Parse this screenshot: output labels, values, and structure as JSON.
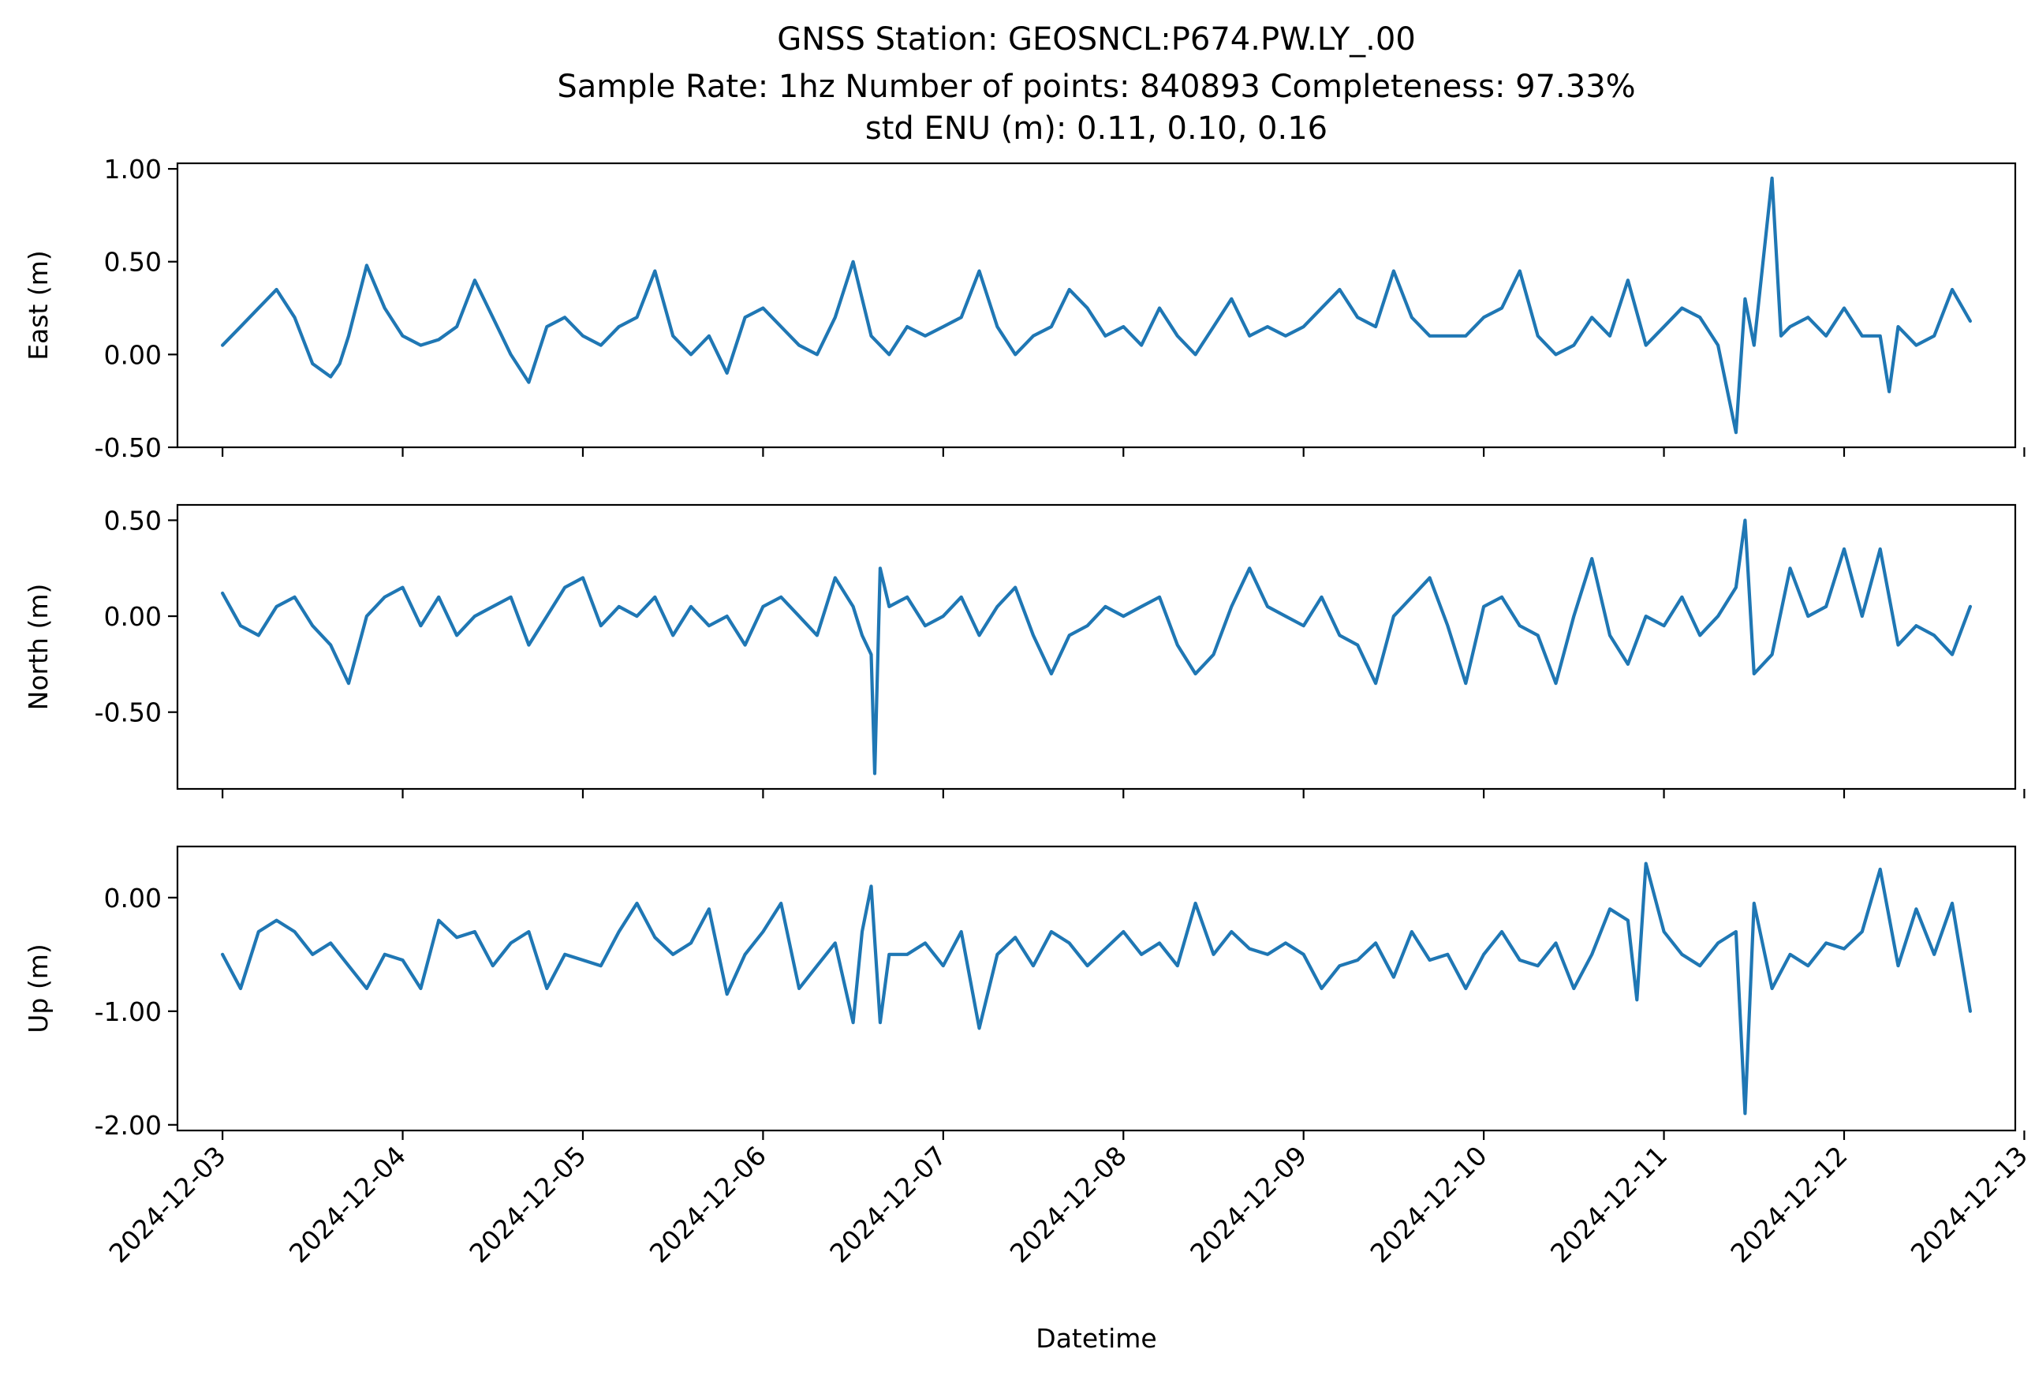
{
  "figure": {
    "title_lines": [
      "GNSS Station: GEOSNCL:P674.PW.LY_.00",
      "Sample Rate: 1hz   Number of points: 840893    Completeness:  97.33%",
      "std ENU (m):  0.11, 0.10, 0.16"
    ],
    "xlabel": "Datetime",
    "line_color": "#1f77b4"
  },
  "chart_data": [
    {
      "type": "line",
      "ylabel": "East (m)",
      "ylim": [
        -0.5,
        1.03
      ],
      "yticks": [
        -0.5,
        0.0,
        0.5,
        1.0
      ],
      "ytick_labels": [
        "-0.50",
        "0.00",
        "0.50",
        "1.00"
      ],
      "xlim": [
        -0.25,
        9.95
      ],
      "xtick_labels": [
        "2024-12-03",
        "2024-12-04",
        "2024-12-05",
        "2024-12-06",
        "2024-12-07",
        "2024-12-08",
        "2024-12-09",
        "2024-12-10",
        "2024-12-11",
        "2024-12-12",
        "2024-12-13"
      ],
      "x_units": "days since 2024-12-03",
      "series": [
        {
          "x": [
            0.0,
            0.1,
            0.2,
            0.3,
            0.4,
            0.5,
            0.6,
            0.65,
            0.7,
            0.8,
            0.9,
            1.0,
            1.1,
            1.2,
            1.3,
            1.4,
            1.5,
            1.6,
            1.7,
            1.8,
            1.9,
            2.0,
            2.1,
            2.2,
            2.3,
            2.4,
            2.5,
            2.6,
            2.7,
            2.8,
            2.9,
            3.0,
            3.1,
            3.2,
            3.3,
            3.4,
            3.5,
            3.6,
            3.7,
            3.8,
            3.9,
            4.0,
            4.1,
            4.2,
            4.3,
            4.4,
            4.5,
            4.6,
            4.7,
            4.8,
            4.9,
            5.0,
            5.1,
            5.2,
            5.3,
            5.4,
            5.5,
            5.6,
            5.7,
            5.8,
            5.9,
            6.0,
            6.1,
            6.2,
            6.3,
            6.4,
            6.5,
            6.6,
            6.7,
            6.8,
            6.9,
            7.0,
            7.1,
            7.2,
            7.3,
            7.4,
            7.5,
            7.6,
            7.7,
            7.8,
            7.9,
            8.0,
            8.1,
            8.2,
            8.3,
            8.4,
            8.45,
            8.5,
            8.6,
            8.65,
            8.7,
            8.8,
            8.9,
            9.0,
            9.1,
            9.2,
            9.25,
            9.3,
            9.4,
            9.5,
            9.6,
            9.7
          ],
          "y": [
            0.05,
            0.15,
            0.25,
            0.35,
            0.2,
            -0.05,
            -0.12,
            -0.05,
            0.1,
            0.48,
            0.25,
            0.1,
            0.05,
            0.08,
            0.15,
            0.4,
            0.2,
            0.0,
            -0.15,
            0.15,
            0.2,
            0.1,
            0.05,
            0.15,
            0.2,
            0.45,
            0.1,
            0.0,
            0.1,
            -0.1,
            0.2,
            0.25,
            0.15,
            0.05,
            0.0,
            0.2,
            0.5,
            0.1,
            0.0,
            0.15,
            0.1,
            0.15,
            0.2,
            0.45,
            0.15,
            0.0,
            0.1,
            0.15,
            0.35,
            0.25,
            0.1,
            0.15,
            0.05,
            0.25,
            0.1,
            0.0,
            0.15,
            0.3,
            0.1,
            0.15,
            0.1,
            0.15,
            0.25,
            0.35,
            0.2,
            0.15,
            0.45,
            0.2,
            0.1,
            0.1,
            0.1,
            0.2,
            0.25,
            0.45,
            0.1,
            0.0,
            0.05,
            0.2,
            0.1,
            0.4,
            0.05,
            0.15,
            0.25,
            0.2,
            0.05,
            -0.42,
            0.3,
            0.05,
            0.95,
            0.1,
            0.15,
            0.2,
            0.1,
            0.25,
            0.1,
            0.1,
            -0.2,
            0.15,
            0.05,
            0.1,
            0.35,
            0.18
          ]
        }
      ]
    },
    {
      "type": "line",
      "ylabel": "North (m)",
      "ylim": [
        -0.9,
        0.58
      ],
      "yticks": [
        -0.5,
        0.0,
        0.5
      ],
      "ytick_labels": [
        "-0.50",
        "0.00",
        "0.50"
      ],
      "xlim": [
        -0.25,
        9.95
      ],
      "xtick_labels": [
        "2024-12-03",
        "2024-12-04",
        "2024-12-05",
        "2024-12-06",
        "2024-12-07",
        "2024-12-08",
        "2024-12-09",
        "2024-12-10",
        "2024-12-11",
        "2024-12-12",
        "2024-12-13"
      ],
      "x_units": "days since 2024-12-03",
      "series": [
        {
          "x": [
            0.0,
            0.1,
            0.2,
            0.3,
            0.4,
            0.5,
            0.6,
            0.7,
            0.8,
            0.9,
            1.0,
            1.1,
            1.2,
            1.3,
            1.4,
            1.5,
            1.6,
            1.7,
            1.8,
            1.9,
            2.0,
            2.1,
            2.2,
            2.3,
            2.4,
            2.5,
            2.6,
            2.7,
            2.8,
            2.9,
            3.0,
            3.1,
            3.2,
            3.3,
            3.4,
            3.5,
            3.55,
            3.6,
            3.62,
            3.65,
            3.7,
            3.8,
            3.9,
            4.0,
            4.1,
            4.2,
            4.3,
            4.4,
            4.5,
            4.6,
            4.7,
            4.8,
            4.9,
            5.0,
            5.1,
            5.2,
            5.3,
            5.4,
            5.5,
            5.6,
            5.7,
            5.8,
            5.9,
            6.0,
            6.1,
            6.2,
            6.3,
            6.4,
            6.5,
            6.6,
            6.7,
            6.8,
            6.9,
            7.0,
            7.1,
            7.2,
            7.3,
            7.4,
            7.5,
            7.6,
            7.7,
            7.8,
            7.9,
            8.0,
            8.1,
            8.2,
            8.3,
            8.4,
            8.45,
            8.5,
            8.6,
            8.7,
            8.8,
            8.9,
            9.0,
            9.1,
            9.2,
            9.3,
            9.4,
            9.5,
            9.6,
            9.7
          ],
          "y": [
            0.12,
            -0.05,
            -0.1,
            0.05,
            0.1,
            -0.05,
            -0.15,
            -0.35,
            0.0,
            0.1,
            0.15,
            -0.05,
            0.1,
            -0.1,
            0.0,
            0.05,
            0.1,
            -0.15,
            0.0,
            0.15,
            0.2,
            -0.05,
            0.05,
            0.0,
            0.1,
            -0.1,
            0.05,
            -0.05,
            0.0,
            -0.15,
            0.05,
            0.1,
            0.0,
            -0.1,
            0.2,
            0.05,
            -0.1,
            -0.2,
            -0.82,
            0.25,
            0.05,
            0.1,
            -0.05,
            0.0,
            0.1,
            -0.1,
            0.05,
            0.15,
            -0.1,
            -0.3,
            -0.1,
            -0.05,
            0.05,
            0.0,
            0.05,
            0.1,
            -0.15,
            -0.3,
            -0.2,
            0.05,
            0.25,
            0.05,
            0.0,
            -0.05,
            0.1,
            -0.1,
            -0.15,
            -0.35,
            0.0,
            0.1,
            0.2,
            -0.05,
            -0.35,
            0.05,
            0.1,
            -0.05,
            -0.1,
            -0.35,
            0.0,
            0.3,
            -0.1,
            -0.25,
            0.0,
            -0.05,
            0.1,
            -0.1,
            0.0,
            0.15,
            0.5,
            -0.3,
            -0.2,
            0.25,
            0.0,
            0.05,
            0.35,
            0.0,
            0.35,
            -0.15,
            -0.05,
            -0.1,
            -0.2,
            0.05
          ]
        }
      ]
    },
    {
      "type": "line",
      "ylabel": "Up (m)",
      "ylim": [
        -2.05,
        0.45
      ],
      "yticks": [
        -2.0,
        -1.0,
        0.0
      ],
      "ytick_labels": [
        "-2.00",
        "-1.00",
        "0.00"
      ],
      "xlim": [
        -0.25,
        9.95
      ],
      "xtick_labels": [
        "2024-12-03",
        "2024-12-04",
        "2024-12-05",
        "2024-12-06",
        "2024-12-07",
        "2024-12-08",
        "2024-12-09",
        "2024-12-10",
        "2024-12-11",
        "2024-12-12",
        "2024-12-13"
      ],
      "x_units": "days since 2024-12-03",
      "series": [
        {
          "x": [
            0.0,
            0.1,
            0.2,
            0.3,
            0.4,
            0.5,
            0.6,
            0.7,
            0.8,
            0.9,
            1.0,
            1.1,
            1.2,
            1.3,
            1.4,
            1.5,
            1.6,
            1.7,
            1.8,
            1.9,
            2.0,
            2.1,
            2.2,
            2.3,
            2.4,
            2.5,
            2.6,
            2.7,
            2.8,
            2.9,
            3.0,
            3.1,
            3.2,
            3.3,
            3.4,
            3.5,
            3.55,
            3.6,
            3.65,
            3.7,
            3.8,
            3.9,
            4.0,
            4.1,
            4.2,
            4.3,
            4.4,
            4.5,
            4.6,
            4.7,
            4.8,
            4.9,
            5.0,
            5.1,
            5.2,
            5.3,
            5.4,
            5.5,
            5.6,
            5.7,
            5.8,
            5.9,
            6.0,
            6.1,
            6.2,
            6.3,
            6.4,
            6.5,
            6.6,
            6.7,
            6.8,
            6.9,
            7.0,
            7.1,
            7.2,
            7.3,
            7.4,
            7.5,
            7.6,
            7.7,
            7.8,
            7.85,
            7.9,
            8.0,
            8.1,
            8.2,
            8.3,
            8.4,
            8.45,
            8.5,
            8.6,
            8.7,
            8.8,
            8.9,
            9.0,
            9.1,
            9.2,
            9.3,
            9.4,
            9.5,
            9.6,
            9.7
          ],
          "y": [
            -0.5,
            -0.8,
            -0.3,
            -0.2,
            -0.3,
            -0.5,
            -0.4,
            -0.6,
            -0.8,
            -0.5,
            -0.55,
            -0.8,
            -0.2,
            -0.35,
            -0.3,
            -0.6,
            -0.4,
            -0.3,
            -0.8,
            -0.5,
            -0.55,
            -0.6,
            -0.3,
            -0.05,
            -0.35,
            -0.5,
            -0.4,
            -0.1,
            -0.85,
            -0.5,
            -0.3,
            -0.05,
            -0.8,
            -0.6,
            -0.4,
            -1.1,
            -0.3,
            0.1,
            -1.1,
            -0.5,
            -0.5,
            -0.4,
            -0.6,
            -0.3,
            -1.15,
            -0.5,
            -0.35,
            -0.6,
            -0.3,
            -0.4,
            -0.6,
            -0.45,
            -0.3,
            -0.5,
            -0.4,
            -0.6,
            -0.05,
            -0.5,
            -0.3,
            -0.45,
            -0.5,
            -0.4,
            -0.5,
            -0.8,
            -0.6,
            -0.55,
            -0.4,
            -0.7,
            -0.3,
            -0.55,
            -0.5,
            -0.8,
            -0.5,
            -0.3,
            -0.55,
            -0.6,
            -0.4,
            -0.8,
            -0.5,
            -0.1,
            -0.2,
            -0.9,
            0.3,
            -0.3,
            -0.5,
            -0.6,
            -0.4,
            -0.3,
            -1.9,
            -0.05,
            -0.8,
            -0.5,
            -0.6,
            -0.4,
            -0.45,
            -0.3,
            0.25,
            -0.6,
            -0.1,
            -0.5,
            -0.05,
            -1.0
          ]
        }
      ]
    }
  ]
}
